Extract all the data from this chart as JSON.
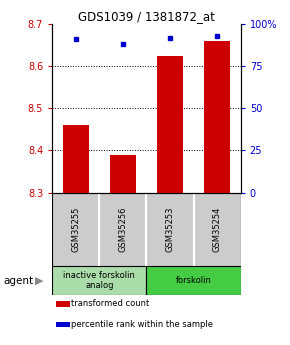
{
  "title": "GDS1039 / 1381872_at",
  "samples": [
    "GSM35255",
    "GSM35256",
    "GSM35253",
    "GSM35254"
  ],
  "bar_values": [
    8.46,
    8.39,
    8.625,
    8.66
  ],
  "percentile_values": [
    91,
    88,
    92,
    93
  ],
  "ylim_left": [
    8.3,
    8.7
  ],
  "ylim_right": [
    0,
    100
  ],
  "yticks_left": [
    8.3,
    8.4,
    8.5,
    8.6,
    8.7
  ],
  "yticks_right": [
    0,
    25,
    50,
    75,
    100
  ],
  "ytick_labels_right": [
    "0",
    "25",
    "50",
    "75",
    "100%"
  ],
  "bar_color": "#CC0000",
  "dot_color": "#0000CC",
  "left_tick_color": "#CC0000",
  "right_tick_color": "#0000CC",
  "agent_groups": [
    {
      "label": "inactive forskolin\nanalog",
      "color": "#aaddaa",
      "span": [
        0,
        2
      ]
    },
    {
      "label": "forskolin",
      "color": "#44cc44",
      "span": [
        2,
        4
      ]
    }
  ],
  "legend_items": [
    {
      "color": "#CC0000",
      "label": "transformed count"
    },
    {
      "color": "#0000CC",
      "label": "percentile rank within the sample"
    }
  ],
  "agent_label": "agent",
  "background_color": "#ffffff",
  "plot_bg_color": "#ffffff",
  "sample_box_color": "#cccccc",
  "bar_width": 0.55,
  "base_value": 8.3,
  "grid_lines": [
    8.4,
    8.5,
    8.6
  ]
}
